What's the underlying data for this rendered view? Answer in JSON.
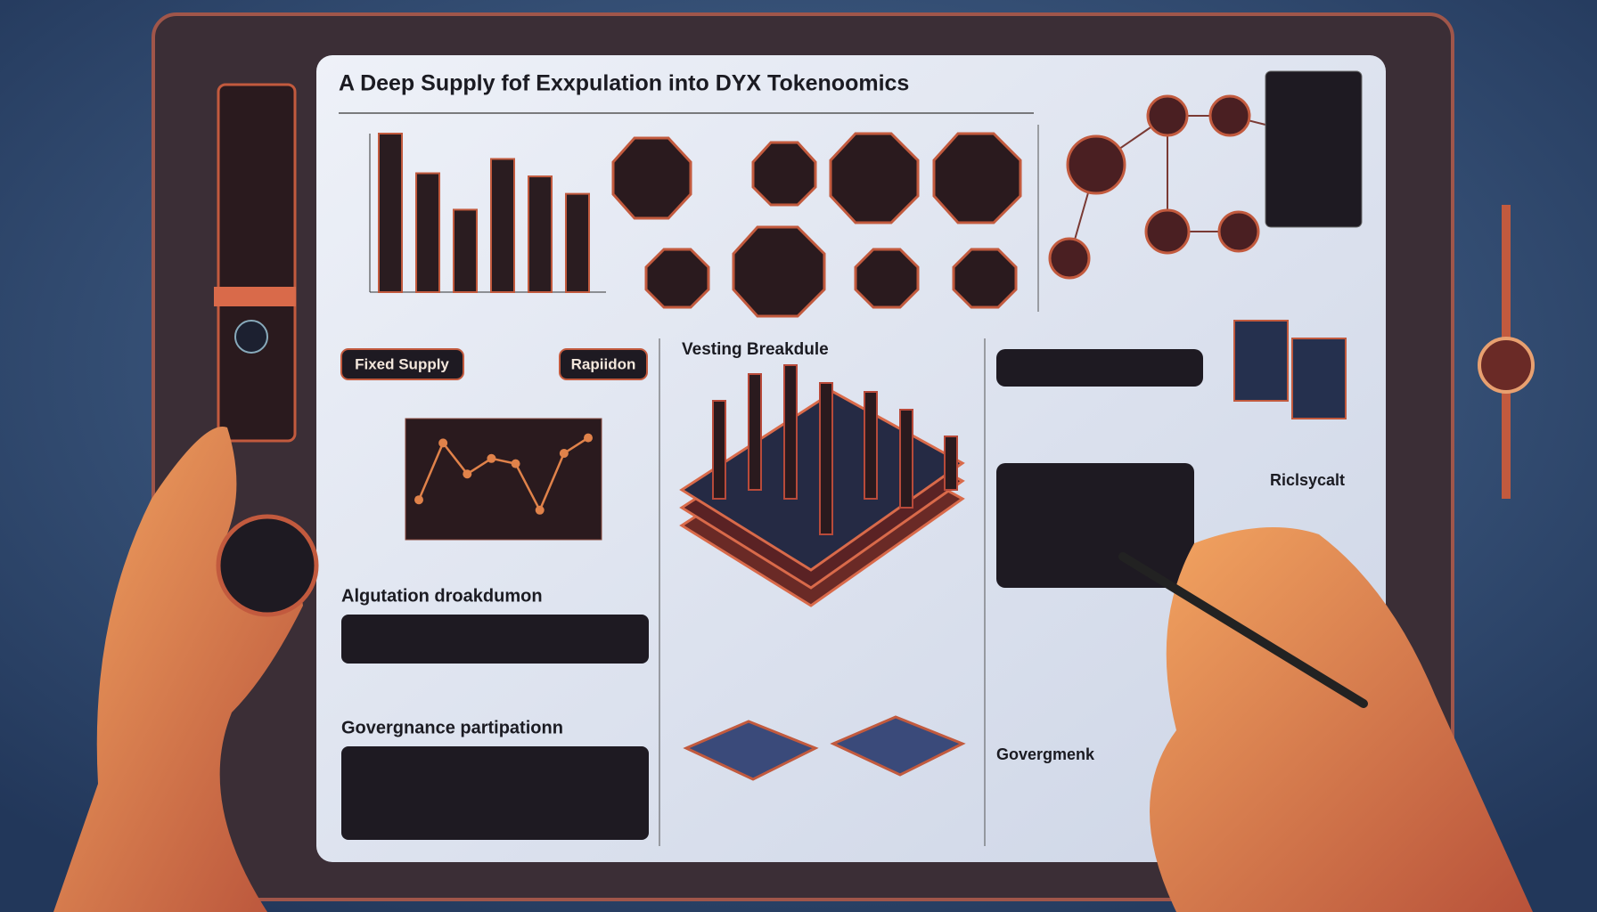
{
  "header": {
    "title": "A Deep Supply fof Exxpulation into DYX Tokenoomics"
  },
  "supply_chart": {
    "type": "bar",
    "values": [
      100,
      75,
      52,
      84,
      73,
      62
    ],
    "ylim": [
      0,
      100
    ],
    "color": "#2a1c20"
  },
  "price_chart": {
    "type": "line",
    "values": [
      30,
      85,
      55,
      70,
      65,
      20,
      75,
      90
    ],
    "ylim": [
      0,
      100
    ],
    "color": "#e0824a"
  },
  "tags": [
    "Fixed Supply",
    "Rapiidon"
  ],
  "sections": {
    "vesting": "Vesting Breakdule",
    "allocation": "Algutation droakdumon",
    "governance": "Govergnance partipationn",
    "governance_right": "Govergmenk",
    "risk": "Riclsycalt"
  }
}
